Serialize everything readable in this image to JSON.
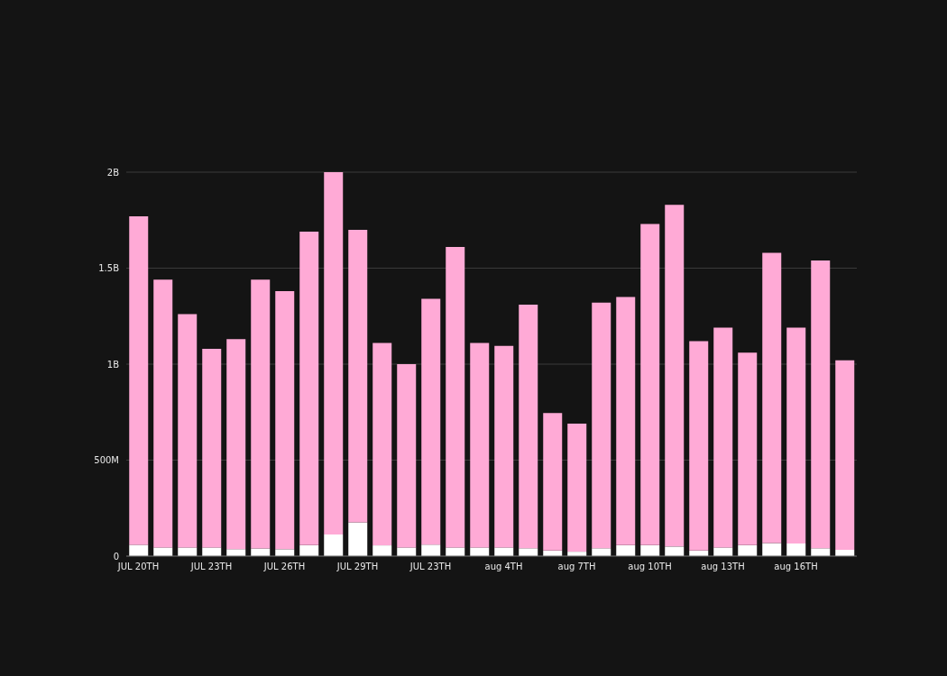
{
  "chart_data": {
    "type": "bar",
    "stacked": true,
    "categories": [
      "JUL 20TH",
      null,
      null,
      "JUL 23TH",
      null,
      null,
      "JUL 26TH",
      null,
      null,
      "JUL 29TH",
      null,
      null,
      "JUL 23TH",
      null,
      null,
      "aug 4TH",
      null,
      null,
      "aug 7TH",
      null,
      null,
      "aug 10TH",
      null,
      null,
      "aug 13TH",
      null,
      null,
      "aug 16TH",
      null,
      null
    ],
    "series": [
      {
        "color": "#ffffff",
        "values": [
          59000000,
          45000000,
          45000000,
          45000000,
          36000000,
          40000000,
          36000000,
          57000000,
          113000000,
          176000000,
          56000000,
          45000000,
          60000000,
          45000000,
          45000000,
          45000000,
          41000000,
          29000000,
          23000000,
          41000000,
          57000000,
          57000000,
          50000000,
          29000000,
          45000000,
          57000000,
          68000000,
          66000000,
          41000000,
          33000000
        ]
      },
      {
        "color": "#ffaad6",
        "values": [
          1711000000,
          1395000000,
          1215000000,
          1035000000,
          1094000000,
          1400000000,
          1344000000,
          1633000000,
          1887000000,
          1524000000,
          1054000000,
          955000000,
          1280000000,
          1565000000,
          1065000000,
          1050000000,
          1269000000,
          716000000,
          667000000,
          1279000000,
          1293000000,
          1673000000,
          1780000000,
          1091000000,
          1145000000,
          1003000000,
          1512000000,
          1124000000,
          1499000000,
          987000000
        ]
      }
    ],
    "ylim": [
      0,
      2000000000
    ],
    "yticks": [
      0,
      {
        "value": 500000000,
        "label": "500M"
      },
      {
        "value": 1000000000,
        "label": "1B"
      },
      {
        "value": 1500000000,
        "label": "1.5B"
      },
      {
        "value": 2000000000,
        "label": "2B"
      }
    ],
    "grid": "y",
    "legend": false
  }
}
